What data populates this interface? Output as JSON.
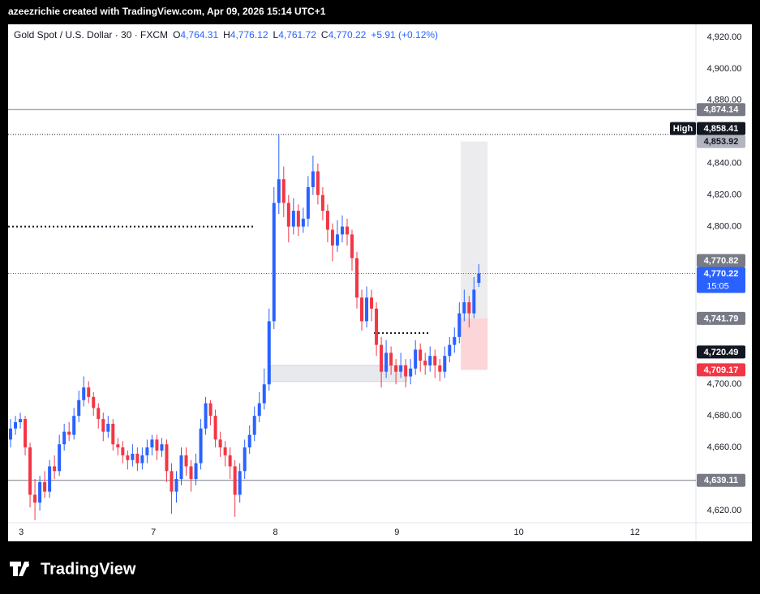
{
  "header": "azeezrichie created with TradingView.com, Apr 09, 2026 15:14 UTC+1",
  "footer": {
    "brand": "TradingView"
  },
  "chart_data": {
    "type": "candlestick",
    "symbol": "Gold Spot / U.S. Dollar · 30 · FXCM",
    "ohlc_legend": [
      {
        "key": "O",
        "value": "4,764.31"
      },
      {
        "key": "H",
        "value": "4,776.12"
      },
      {
        "key": "L",
        "value": "4,761.72"
      },
      {
        "key": "C",
        "value": "4,770.22"
      }
    ],
    "change": "+5.91 (+0.12%)",
    "up_color": "#2962ff",
    "down_color": "#f23645",
    "xlim": [
      0,
      141
    ],
    "xticks": [
      {
        "value": 2.7,
        "label": "3"
      },
      {
        "value": 29.8,
        "label": "7"
      },
      {
        "value": 54.8,
        "label": "8"
      },
      {
        "value": 79.7,
        "label": "9"
      },
      {
        "value": 104.7,
        "label": "10"
      },
      {
        "value": 128.5,
        "label": "12"
      }
    ],
    "ylim": [
      4612.3,
      4928.2
    ],
    "yticks": [
      {
        "value": 4920,
        "label": "4,920.00"
      },
      {
        "value": 4900,
        "label": "4,900.00"
      },
      {
        "value": 4880,
        "label": "4,880.00"
      },
      {
        "value": 4840,
        "label": "4,840.00"
      },
      {
        "value": 4820,
        "label": "4,820.00"
      },
      {
        "value": 4800,
        "label": "4,800.00"
      },
      {
        "value": 4700,
        "label": "4,700.00"
      },
      {
        "value": 4680,
        "label": "4,680.00"
      },
      {
        "value": 4660,
        "label": "4,660.00"
      },
      {
        "value": 4620,
        "label": "4,620.00"
      }
    ],
    "grid": false,
    "candles": [
      [
        4665,
        4678,
        4660,
        4672
      ],
      [
        4672,
        4680,
        4668,
        4676
      ],
      [
        4676,
        4682,
        4672,
        4678
      ],
      [
        4678,
        4680,
        4655,
        4660
      ],
      [
        4660,
        4663,
        4622,
        4630
      ],
      [
        4630,
        4640,
        4614,
        4625
      ],
      [
        4625,
        4642,
        4620,
        4638
      ],
      [
        4638,
        4645,
        4628,
        4632
      ],
      [
        4632,
        4652,
        4628,
        4648
      ],
      [
        4648,
        4655,
        4640,
        4645
      ],
      [
        4645,
        4668,
        4642,
        4662
      ],
      [
        4662,
        4675,
        4658,
        4670
      ],
      [
        4670,
        4676,
        4664,
        4668
      ],
      [
        4668,
        4685,
        4665,
        4680
      ],
      [
        4680,
        4696,
        4676,
        4690
      ],
      [
        4690,
        4705,
        4686,
        4698
      ],
      [
        4698,
        4702,
        4688,
        4692
      ],
      [
        4692,
        4695,
        4680,
        4685
      ],
      [
        4685,
        4688,
        4672,
        4678
      ],
      [
        4678,
        4682,
        4664,
        4670
      ],
      [
        4670,
        4680,
        4666,
        4675
      ],
      [
        4675,
        4678,
        4658,
        4662
      ],
      [
        4662,
        4666,
        4655,
        4660
      ],
      [
        4660,
        4664,
        4650,
        4655
      ],
      [
        4655,
        4658,
        4646,
        4652
      ],
      [
        4652,
        4662,
        4648,
        4656
      ],
      [
        4656,
        4660,
        4645,
        4650
      ],
      [
        4650,
        4660,
        4646,
        4655
      ],
      [
        4655,
        4665,
        4650,
        4660
      ],
      [
        4660,
        4668,
        4655,
        4665
      ],
      [
        4665,
        4668,
        4652,
        4658
      ],
      [
        4658,
        4666,
        4654,
        4662
      ],
      [
        4662,
        4665,
        4638,
        4645
      ],
      [
        4645,
        4650,
        4618,
        4632
      ],
      [
        4632,
        4645,
        4625,
        4640
      ],
      [
        4640,
        4660,
        4636,
        4655
      ],
      [
        4655,
        4660,
        4642,
        4648
      ],
      [
        4648,
        4652,
        4632,
        4640
      ],
      [
        4640,
        4656,
        4636,
        4650
      ],
      [
        4650,
        4678,
        4646,
        4672
      ],
      [
        4672,
        4692,
        4668,
        4688
      ],
      [
        4688,
        4690,
        4674,
        4680
      ],
      [
        4680,
        4684,
        4660,
        4665
      ],
      [
        4665,
        4670,
        4654,
        4660
      ],
      [
        4660,
        4664,
        4648,
        4655
      ],
      [
        4655,
        4660,
        4640,
        4648
      ],
      [
        4648,
        4652,
        4616,
        4630
      ],
      [
        4630,
        4650,
        4625,
        4645
      ],
      [
        4645,
        4665,
        4640,
        4660
      ],
      [
        4660,
        4674,
        4656,
        4668
      ],
      [
        4668,
        4686,
        4664,
        4680
      ],
      [
        4680,
        4695,
        4676,
        4688
      ],
      [
        4688,
        4710,
        4684,
        4700
      ],
      [
        4700,
        4748,
        4696,
        4740
      ],
      [
        4740,
        4825,
        4735,
        4815
      ],
      [
        4815,
        4858.41,
        4808,
        4830
      ],
      [
        4830,
        4838,
        4806,
        4815
      ],
      [
        4815,
        4820,
        4790,
        4800
      ],
      [
        4800,
        4818,
        4795,
        4810
      ],
      [
        4810,
        4814,
        4794,
        4800
      ],
      [
        4800,
        4812,
        4796,
        4805
      ],
      [
        4805,
        4832,
        4800,
        4825
      ],
      [
        4825,
        4845,
        4820,
        4835
      ],
      [
        4835,
        4840,
        4814,
        4820
      ],
      [
        4820,
        4825,
        4804,
        4810
      ],
      [
        4810,
        4814,
        4790,
        4798
      ],
      [
        4798,
        4802,
        4778,
        4788
      ],
      [
        4788,
        4804,
        4784,
        4795
      ],
      [
        4795,
        4807,
        4790,
        4800
      ],
      [
        4800,
        4805,
        4788,
        4795
      ],
      [
        4795,
        4798,
        4772,
        4780
      ],
      [
        4780,
        4784,
        4748,
        4755
      ],
      [
        4755,
        4760,
        4734,
        4740
      ],
      [
        4740,
        4762,
        4736,
        4755
      ],
      [
        4755,
        4760,
        4740,
        4748
      ],
      [
        4748,
        4752,
        4718,
        4725
      ],
      [
        4725,
        4730,
        4698,
        4708
      ],
      [
        4708,
        4728,
        4704,
        4720
      ],
      [
        4720,
        4724,
        4706,
        4712
      ],
      [
        4712,
        4716,
        4700,
        4708
      ],
      [
        4708,
        4720,
        4704,
        4712
      ],
      [
        4712,
        4716,
        4698,
        4705
      ],
      [
        4705,
        4716,
        4700,
        4710
      ],
      [
        4710,
        4728,
        4706,
        4722
      ],
      [
        4722,
        4726,
        4708,
        4715
      ],
      [
        4715,
        4720,
        4706,
        4712
      ],
      [
        4712,
        4724,
        4708,
        4718
      ],
      [
        4718,
        4722,
        4704,
        4712
      ],
      [
        4712,
        4716,
        4702,
        4708
      ],
      [
        4708,
        4724,
        4704,
        4718
      ],
      [
        4718,
        4730,
        4714,
        4725
      ],
      [
        4725,
        4736,
        4720,
        4730
      ],
      [
        4730,
        4752,
        4726,
        4745
      ],
      [
        4745,
        4760,
        4740,
        4752
      ],
      [
        4752,
        4756,
        4736,
        4745
      ],
      [
        4745,
        4768,
        4742,
        4760
      ],
      [
        4764.31,
        4776.12,
        4761.72,
        4770.22
      ]
    ],
    "levels": [
      {
        "value": 4874.14,
        "label": "4,874.14",
        "style": "solid",
        "color": "#787b86"
      },
      {
        "value": 4858.41,
        "label": "4,858.41",
        "style": "dotted",
        "color": "#131722",
        "tag": "High"
      },
      {
        "value": 4770.22,
        "label": "4,770.22",
        "style": "dotted",
        "color": "#2962ff",
        "countdown": "15:05"
      },
      {
        "value": 4639.11,
        "label": "4,639.11",
        "style": "solid",
        "color": "#787b86"
      }
    ],
    "badges": [
      {
        "value": 4853.92,
        "label": "4,853.92",
        "color": "#b2b5be",
        "text_color": "#131722"
      },
      {
        "value": 4770.82,
        "label": "4,770.82",
        "color": "#787b86"
      },
      {
        "value": 4741.79,
        "label": "4,741.79",
        "color": "#787b86"
      },
      {
        "value": 4720.49,
        "label": "4,720.49",
        "color": "#131722"
      },
      {
        "value": 4709.17,
        "label": "4,709.17",
        "color": "#f23645"
      }
    ],
    "dotted_segments": [
      {
        "x": [
          0,
          50.3
        ],
        "value": 4800
      },
      {
        "x": [
          75,
          86.2
        ],
        "value": 4732.5
      }
    ],
    "zones": [
      {
        "x": [
          53.8,
          81.7
        ],
        "range": [
          4701.7,
          4712
        ],
        "color": "#e8e9ed"
      },
      {
        "x": [
          92.8,
          98.3
        ],
        "range": [
          4741.79,
          4853.92
        ],
        "color": "#ececee"
      },
      {
        "x": [
          92.8,
          98.3
        ],
        "range": [
          4709.17,
          4741.79
        ],
        "color": "#fbd5d8"
      }
    ]
  }
}
